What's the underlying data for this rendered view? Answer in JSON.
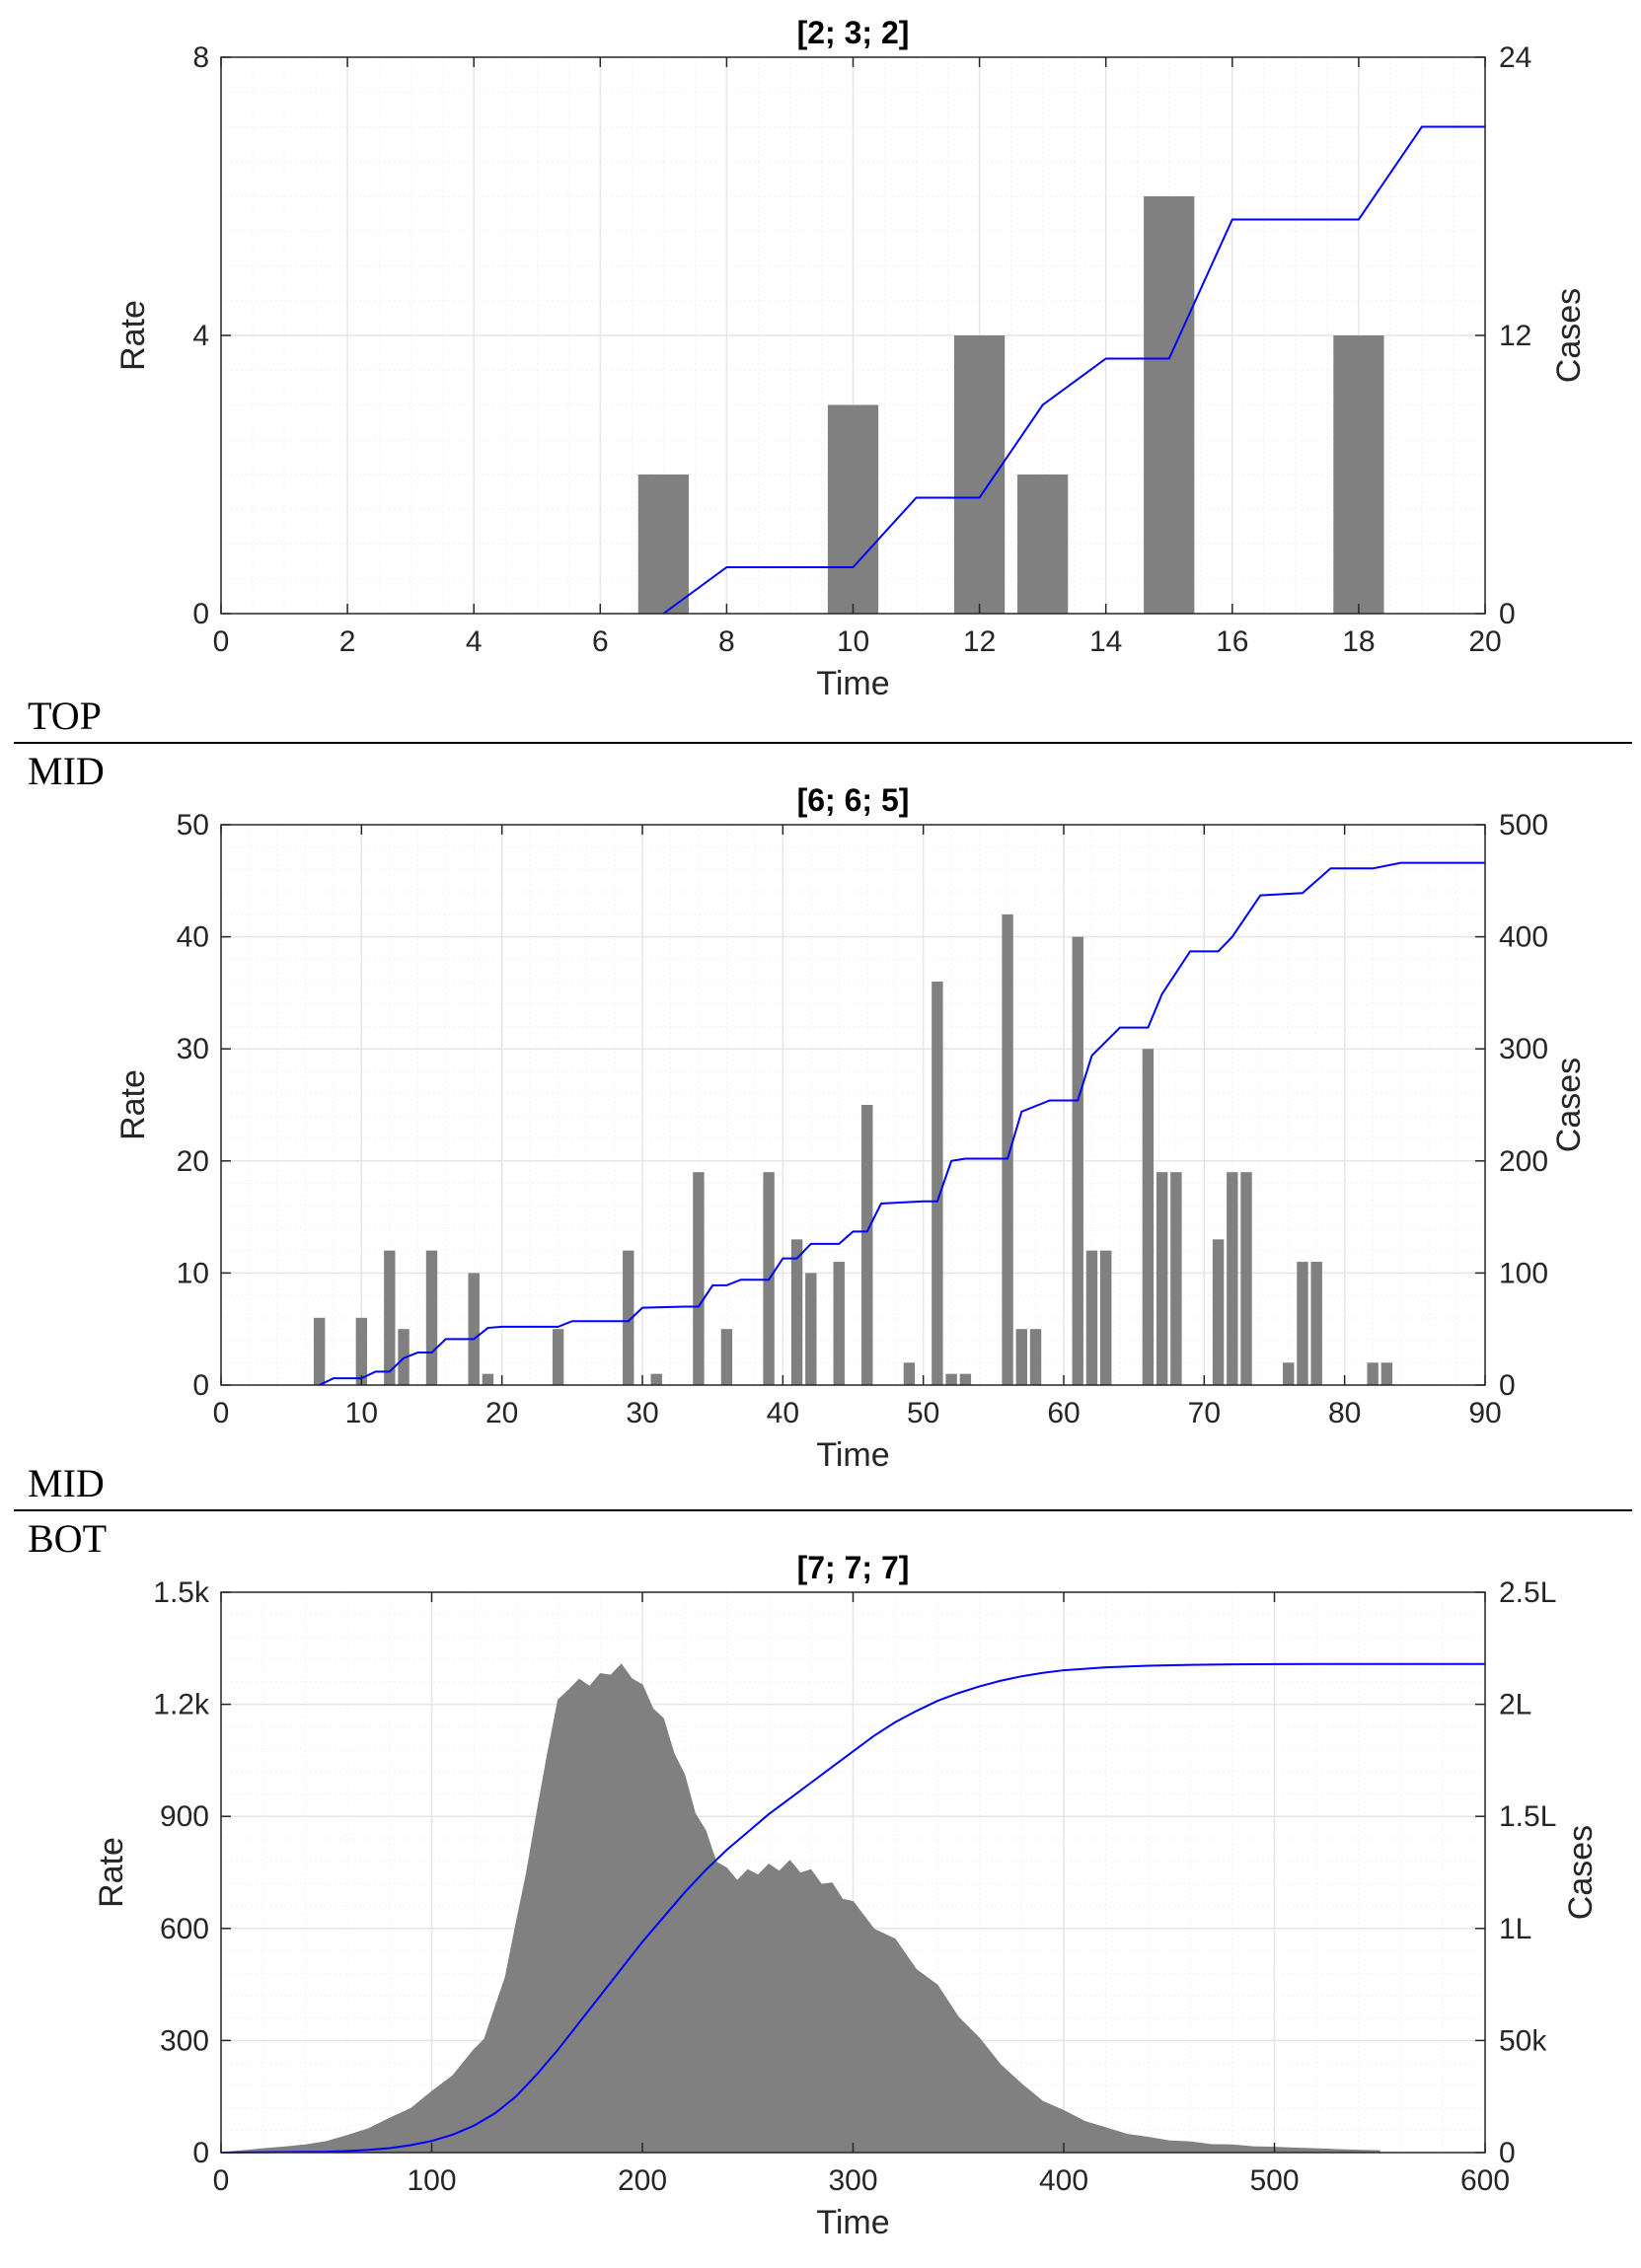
{
  "sections": {
    "top_label": "TOP",
    "mid_label_upper": "MID",
    "mid_label_lower": "MID",
    "bot_label": "BOT"
  },
  "colors": {
    "bar": "#808080",
    "line": "#0000ff",
    "grid": "#e6e6e6",
    "axis": "#262626"
  },
  "chart_data": [
    {
      "type": "bar",
      "title": "[2; 3; 2]",
      "xlabel": "Time",
      "ylabel": "Rate",
      "ylabel_right": "Cases",
      "xlim": [
        0,
        20
      ],
      "ylim": [
        0,
        8
      ],
      "ylim_right": [
        0,
        24
      ],
      "xticks": [
        "0",
        "2",
        "4",
        "6",
        "8",
        "10",
        "12",
        "14",
        "16",
        "18",
        "20"
      ],
      "yticks": [
        "0",
        "4",
        "8"
      ],
      "yticks_right": [
        "0",
        "12",
        "24"
      ],
      "grid": true,
      "bar_width": 0.8,
      "bars": {
        "x": [
          7,
          10,
          12,
          13,
          15,
          18
        ],
        "values": [
          2,
          3,
          4,
          2,
          6,
          4
        ]
      },
      "series": [
        {
          "type": "line",
          "axis": "right",
          "x": [
            7,
            8,
            10,
            11,
            12,
            13,
            14,
            15,
            16,
            18,
            19,
            20
          ],
          "values": [
            0,
            2,
            2,
            5,
            5,
            9,
            11,
            11,
            17,
            17,
            21,
            21
          ]
        }
      ]
    },
    {
      "type": "bar",
      "title": "[6; 6; 5]",
      "xlabel": "Time",
      "ylabel": "Rate",
      "ylabel_right": "Cases",
      "xlim": [
        0,
        90
      ],
      "ylim": [
        0,
        50
      ],
      "ylim_right": [
        0,
        500
      ],
      "xticks": [
        "0",
        "10",
        "20",
        "30",
        "40",
        "50",
        "60",
        "70",
        "80",
        "90"
      ],
      "yticks": [
        "0",
        "10",
        "20",
        "30",
        "40",
        "50"
      ],
      "yticks_right": [
        "0",
        "100",
        "200",
        "300",
        "400",
        "500"
      ],
      "grid": true,
      "bar_width": 0.8,
      "bars": {
        "x": [
          7,
          10,
          12,
          13,
          15,
          18,
          19,
          24,
          29,
          31,
          34,
          36,
          39,
          41,
          42,
          44,
          46,
          49,
          51,
          52,
          53,
          56,
          57,
          58,
          61,
          62,
          63,
          66,
          67,
          68,
          71,
          72,
          73,
          76,
          77,
          78,
          82,
          83
        ],
        "values": [
          6,
          6,
          12,
          5,
          12,
          10,
          1,
          5,
          12,
          1,
          19,
          5,
          19,
          13,
          10,
          11,
          25,
          2,
          36,
          1,
          1,
          42,
          5,
          5,
          40,
          12,
          12,
          30,
          19,
          19,
          13,
          19,
          19,
          2,
          11,
          11,
          2,
          2
        ]
      },
      "series": [
        {
          "type": "line",
          "axis": "right",
          "x": [
            7,
            8,
            10,
            11,
            12,
            13,
            14,
            15,
            16,
            18,
            19,
            20,
            24,
            25,
            29,
            30,
            33,
            34,
            35,
            36,
            37,
            39,
            40,
            41,
            42,
            43,
            44,
            45,
            46,
            47,
            50,
            51,
            52,
            53,
            56,
            57,
            59,
            61,
            62,
            64,
            66,
            67,
            69,
            71,
            72,
            74,
            77,
            79,
            82,
            84,
            90
          ],
          "values": [
            0,
            6,
            6,
            12,
            12,
            24,
            29,
            29,
            41,
            41,
            51,
            52,
            52,
            57,
            57,
            69,
            70,
            70,
            89,
            89,
            94,
            94,
            113,
            113,
            126,
            126,
            126,
            137,
            137,
            162,
            164,
            164,
            200,
            202,
            202,
            244,
            254,
            254,
            294,
            319,
            319,
            349,
            387,
            387,
            400,
            437,
            439,
            461,
            461,
            466,
            466
          ]
        }
      ]
    },
    {
      "type": "bar",
      "title": "[7; 7; 7]",
      "xlabel": "Time",
      "ylabel": "Rate",
      "ylabel_right": "Cases",
      "xlim": [
        0,
        600
      ],
      "ylim": [
        0,
        1500
      ],
      "ylim_right": [
        0,
        250000
      ],
      "xticks": [
        "0",
        "100",
        "200",
        "300",
        "400",
        "500",
        "600"
      ],
      "yticks": [
        "0",
        "300",
        "600",
        "900",
        "1.2k",
        "1.5k"
      ],
      "yticks_right": [
        "0",
        "50k",
        "1L",
        "1.5L",
        "2L",
        "2.5L"
      ],
      "grid": true,
      "bar_width": 1,
      "histogram_envelope": {
        "x": [
          0,
          10,
          20,
          30,
          40,
          50,
          60,
          70,
          80,
          90,
          100,
          110,
          120,
          125,
          130,
          135,
          140,
          145,
          150,
          155,
          160,
          165,
          170,
          175,
          180,
          185,
          190,
          195,
          200,
          205,
          210,
          215,
          220,
          225,
          230,
          235,
          240,
          245,
          250,
          255,
          260,
          265,
          270,
          275,
          280,
          285,
          290,
          295,
          300,
          310,
          320,
          330,
          340,
          350,
          360,
          370,
          380,
          390,
          400,
          410,
          420,
          430,
          440,
          450,
          460,
          470,
          480,
          490,
          500,
          510,
          520,
          530,
          540,
          550
        ],
        "values": [
          0,
          5,
          10,
          15,
          20,
          30,
          45,
          65,
          90,
          120,
          160,
          210,
          270,
          310,
          380,
          480,
          600,
          760,
          900,
          1080,
          1200,
          1250,
          1255,
          1260,
          1270,
          1290,
          1295,
          1280,
          1240,
          1200,
          1150,
          1080,
          1000,
          920,
          850,
          790,
          750,
          740,
          745,
          755,
          760,
          765,
          770,
          760,
          745,
          730,
          710,
          690,
          660,
          610,
          560,
          500,
          440,
          370,
          300,
          240,
          180,
          140,
          110,
          85,
          65,
          50,
          40,
          32,
          28,
          22,
          20,
          16,
          14,
          12,
          10,
          8,
          6,
          5
        ]
      },
      "series": [
        {
          "type": "line",
          "axis": "right",
          "x": [
            0,
            50,
            60,
            70,
            80,
            90,
            100,
            110,
            120,
            130,
            140,
            150,
            160,
            170,
            180,
            190,
            200,
            210,
            220,
            230,
            240,
            250,
            260,
            270,
            280,
            290,
            300,
            310,
            320,
            330,
            340,
            350,
            360,
            370,
            380,
            390,
            400,
            420,
            440,
            460,
            480,
            500,
            520,
            560,
            600
          ],
          "values": [
            0,
            400,
            700,
            1200,
            2000,
            3300,
            5200,
            8000,
            12000,
            17500,
            25000,
            35000,
            46000,
            58000,
            70000,
            82000,
            94000,
            105000,
            116000,
            126000,
            135000,
            143000,
            151000,
            158000,
            165000,
            172000,
            179000,
            186000,
            192000,
            197000,
            201500,
            205000,
            208000,
            210500,
            212500,
            214000,
            215200,
            216500,
            217200,
            217600,
            217800,
            217900,
            218000,
            218000,
            218000
          ]
        }
      ]
    }
  ]
}
